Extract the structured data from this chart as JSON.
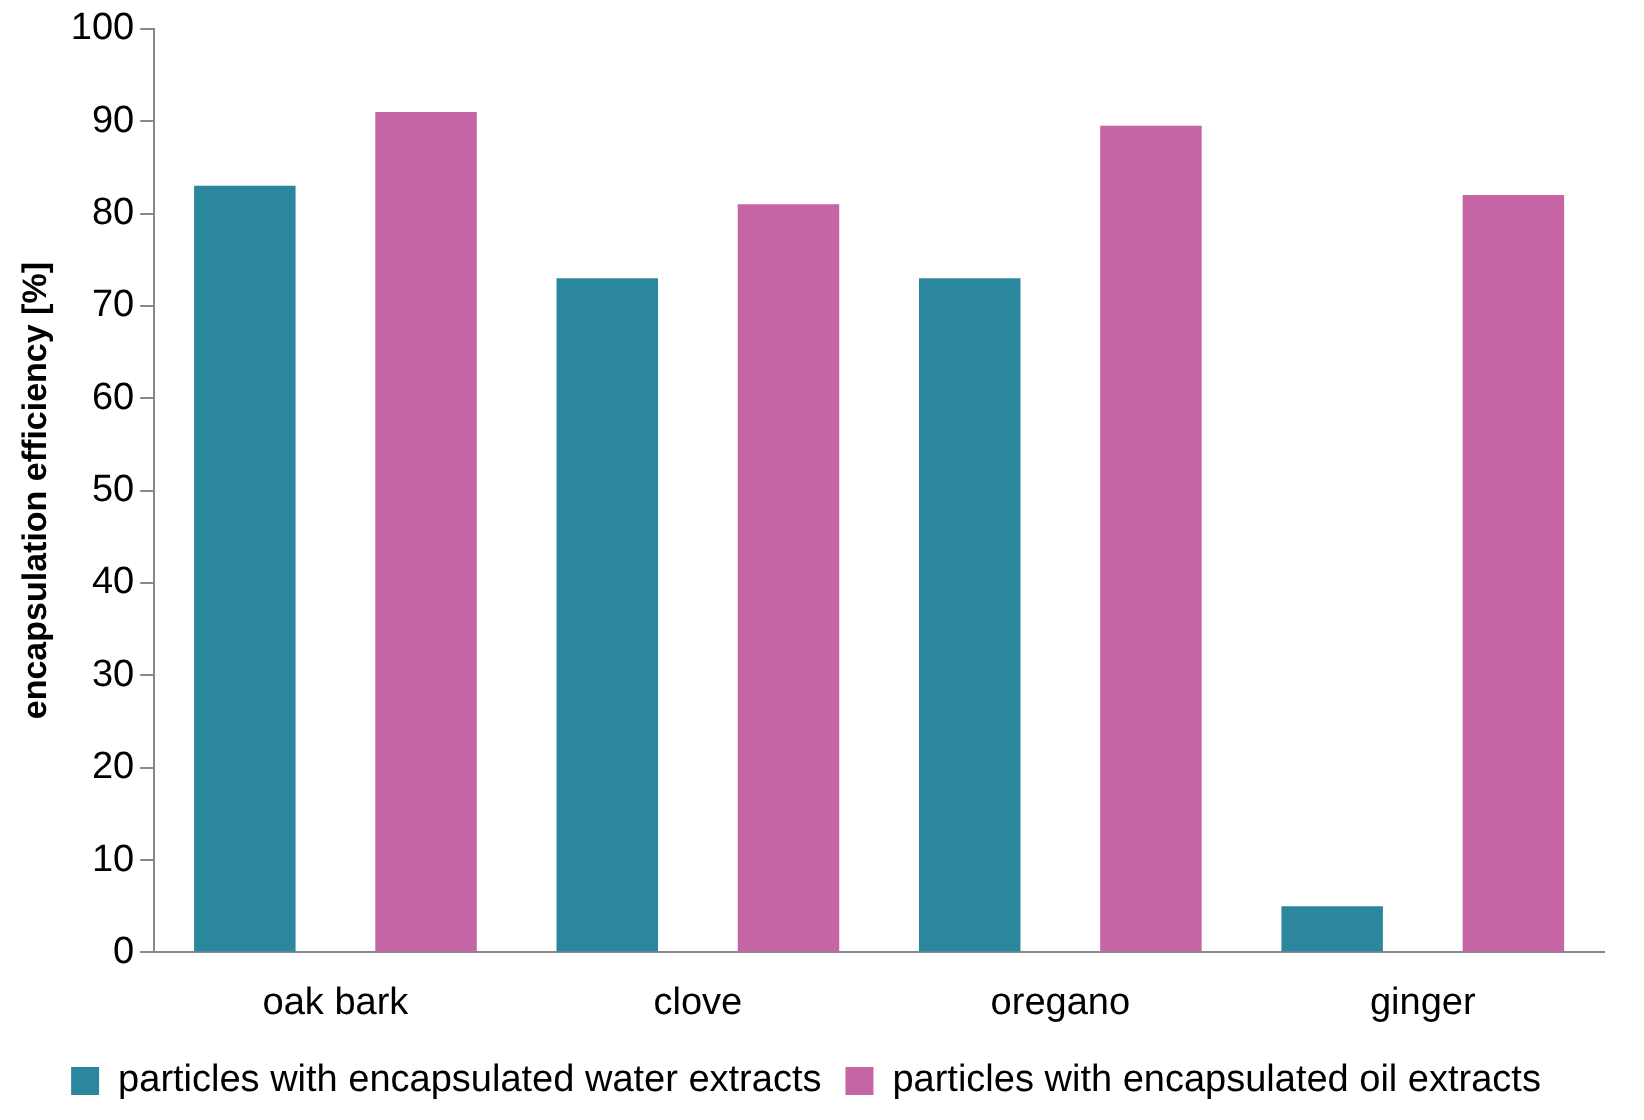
{
  "chart_data": {
    "type": "bar",
    "ylabel": "encapsulation efficiency [%]",
    "categories": [
      "oak bark",
      "clove",
      "oregano",
      "ginger"
    ],
    "series": [
      {
        "name": "particles with encapsulated water extracts",
        "color": "#2b879e",
        "values": [
          83,
          73,
          73,
          5
        ]
      },
      {
        "name": "particles with encapsulated oil extracts",
        "color": "#c665a5",
        "values": [
          91,
          81,
          89.5,
          82
        ]
      }
    ],
    "ylim": [
      0,
      100
    ],
    "yticks": [
      0,
      10,
      20,
      30,
      40,
      50,
      60,
      70,
      80,
      90,
      100
    ],
    "grid": false,
    "legend": "bottom"
  }
}
